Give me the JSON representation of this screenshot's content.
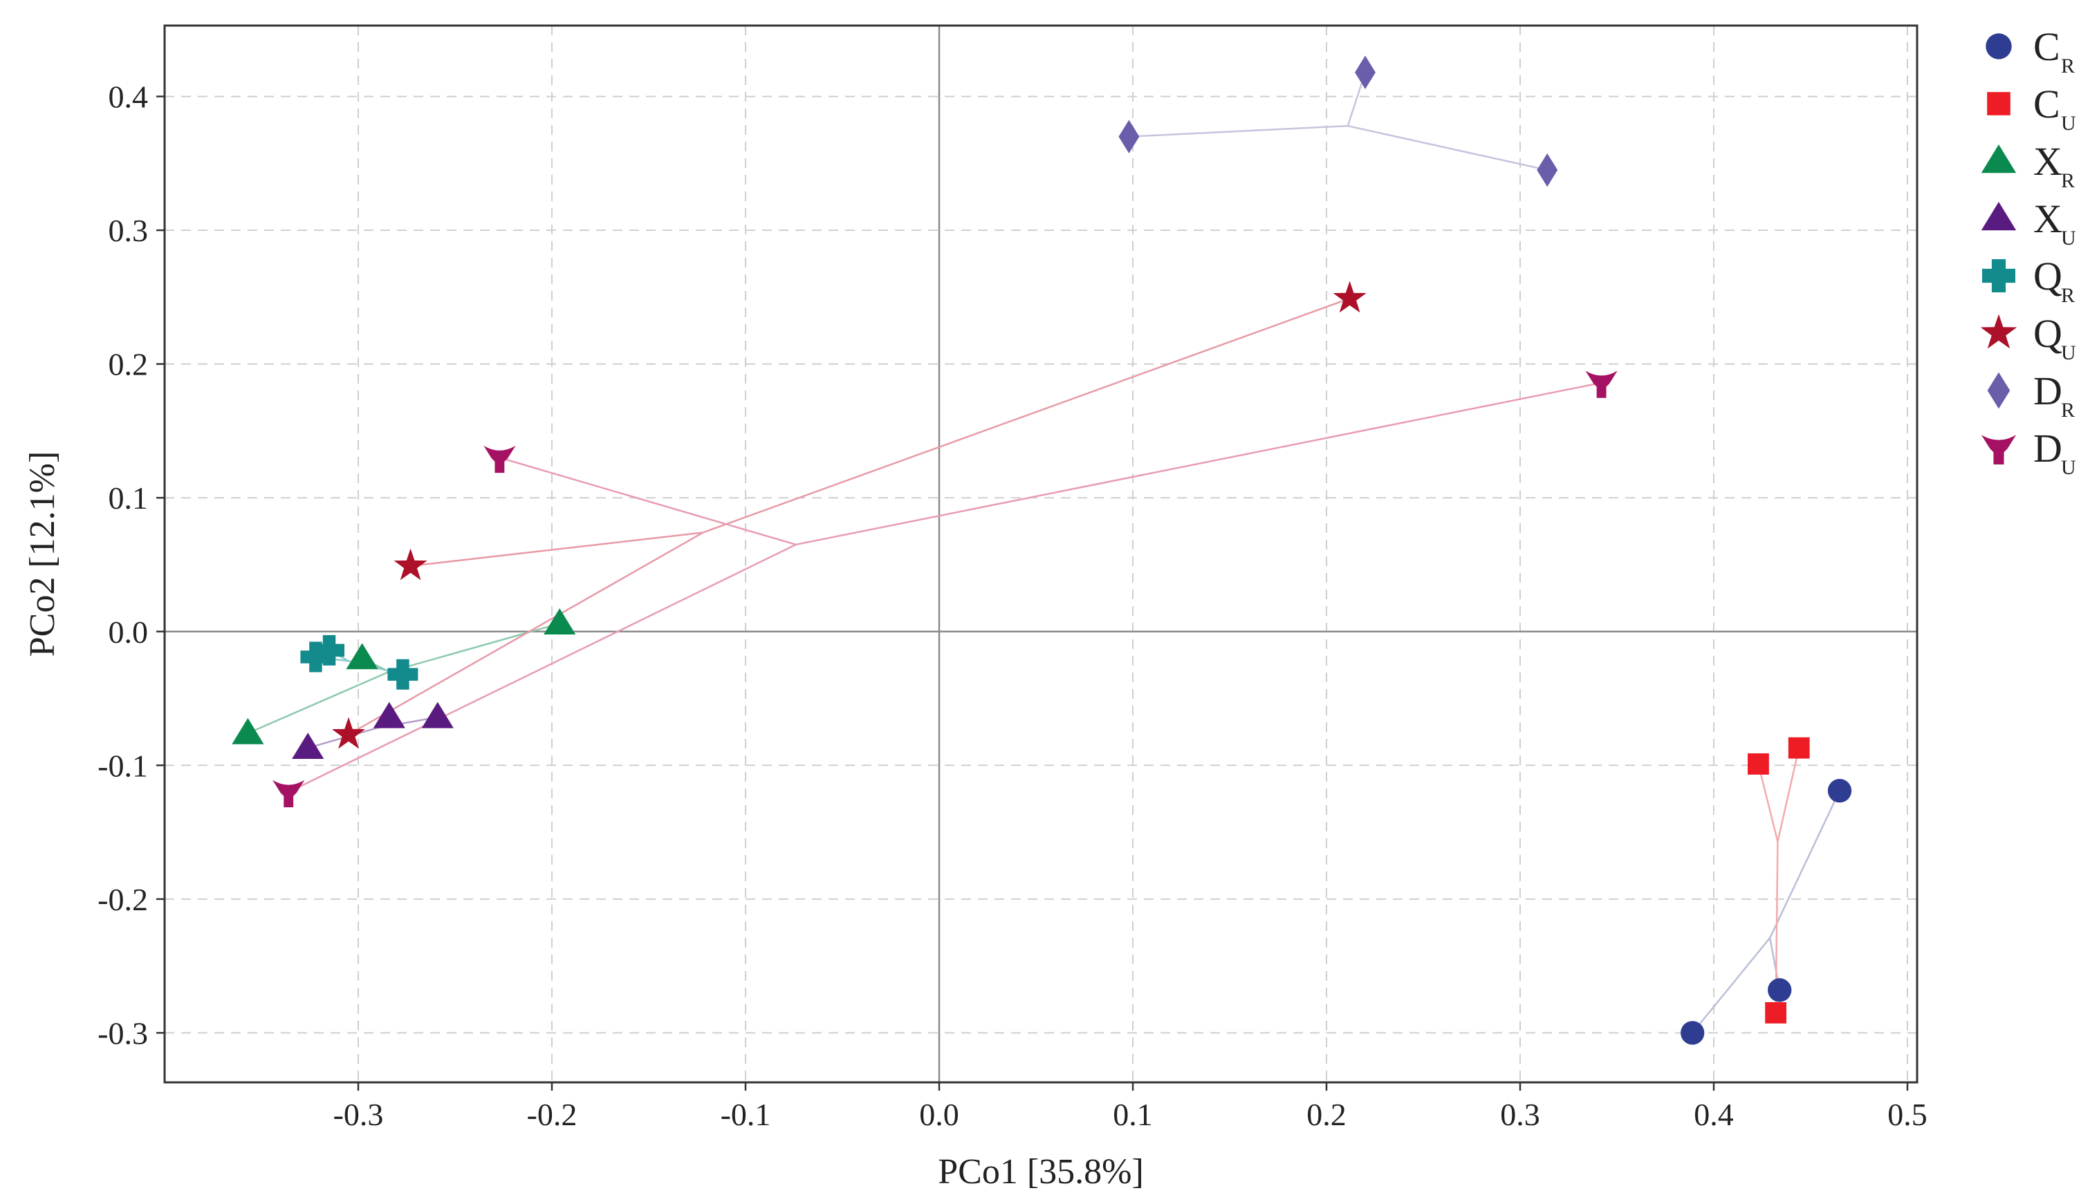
{
  "chart_data": {
    "type": "scatter",
    "title": "",
    "xlabel": "PCo1 [35.8%]",
    "ylabel": "PCo2 [12.1%]",
    "xlim": [
      -0.4,
      0.505
    ],
    "ylim": [
      -0.337,
      0.453
    ],
    "xticks": [
      -0.3,
      -0.2,
      -0.1,
      0.0,
      0.1,
      0.2,
      0.3,
      0.4,
      0.5
    ],
    "yticks": [
      -0.3,
      -0.2,
      -0.1,
      0.0,
      0.1,
      0.2,
      0.3,
      0.4
    ],
    "xtick_labels": [
      "-0.3",
      "-0.2",
      "-0.1",
      "0.0",
      "0.1",
      "0.2",
      "0.3",
      "0.4",
      "0.5"
    ],
    "ytick_labels": [
      "-0.3",
      "-0.2",
      "-0.1",
      "0.0",
      "0.1",
      "0.2",
      "0.3",
      "0.4"
    ],
    "grid": true,
    "legend_position": "right",
    "zero_lines": true,
    "series": [
      {
        "name": "C",
        "sub": "R",
        "marker": "circle",
        "color": "#2e3d91",
        "line_color": "#b9bfda",
        "points": [
          [
            0.465,
            -0.119
          ],
          [
            0.434,
            -0.268
          ],
          [
            0.389,
            -0.3
          ]
        ],
        "centroid": [
          0.429,
          -0.229
        ]
      },
      {
        "name": "C",
        "sub": "U",
        "marker": "square",
        "color": "#ee1c25",
        "line_color": "#f4a9ac",
        "points": [
          [
            0.423,
            -0.099
          ],
          [
            0.444,
            -0.087
          ],
          [
            0.432,
            -0.285
          ]
        ],
        "centroid": [
          0.433,
          -0.157
        ]
      },
      {
        "name": "X",
        "sub": "R",
        "marker": "triangle",
        "color": "#0b8a4f",
        "line_color": "#8cc9ac",
        "points": [
          [
            -0.357,
            -0.076
          ],
          [
            -0.298,
            -0.02
          ],
          [
            -0.196,
            0.006
          ]
        ],
        "centroid": [
          -0.284,
          -0.03
        ]
      },
      {
        "name": "X",
        "sub": "U",
        "marker": "triangle",
        "color": "#5a1b80",
        "line_color": "#b79ccb",
        "points": [
          [
            -0.326,
            -0.087
          ],
          [
            -0.284,
            -0.064
          ],
          [
            -0.259,
            -0.064
          ]
        ],
        "centroid": [
          -0.29,
          -0.072
        ]
      },
      {
        "name": "Q",
        "sub": "R",
        "marker": "plus",
        "color": "#138a8c",
        "line_color": "#8ccacb",
        "points": [
          [
            -0.322,
            -0.019
          ],
          [
            -0.315,
            -0.014
          ],
          [
            -0.277,
            -0.032
          ]
        ],
        "centroid": [
          -0.305,
          -0.022
        ]
      },
      {
        "name": "Q",
        "sub": "U",
        "marker": "star",
        "color": "#ad1029",
        "line_color": "#e79aa6",
        "points": [
          [
            -0.273,
            0.049
          ],
          [
            -0.305,
            -0.077
          ],
          [
            0.212,
            0.249
          ]
        ],
        "centroid": [
          -0.122,
          0.074
        ]
      },
      {
        "name": "D",
        "sub": "R",
        "marker": "diamond",
        "color": "#6a5eab",
        "line_color": "#c7c3df",
        "points": [
          [
            0.098,
            0.37
          ],
          [
            0.22,
            0.418
          ],
          [
            0.314,
            0.345
          ]
        ],
        "centroid": [
          0.211,
          0.378
        ]
      },
      {
        "name": "D",
        "sub": "U",
        "marker": "tripod",
        "color": "#a51163",
        "line_color": "#e89cb0",
        "points": [
          [
            -0.227,
            0.13
          ],
          [
            -0.336,
            -0.12
          ],
          [
            0.342,
            0.186
          ]
        ],
        "centroid": [
          -0.074,
          0.065
        ]
      }
    ]
  }
}
